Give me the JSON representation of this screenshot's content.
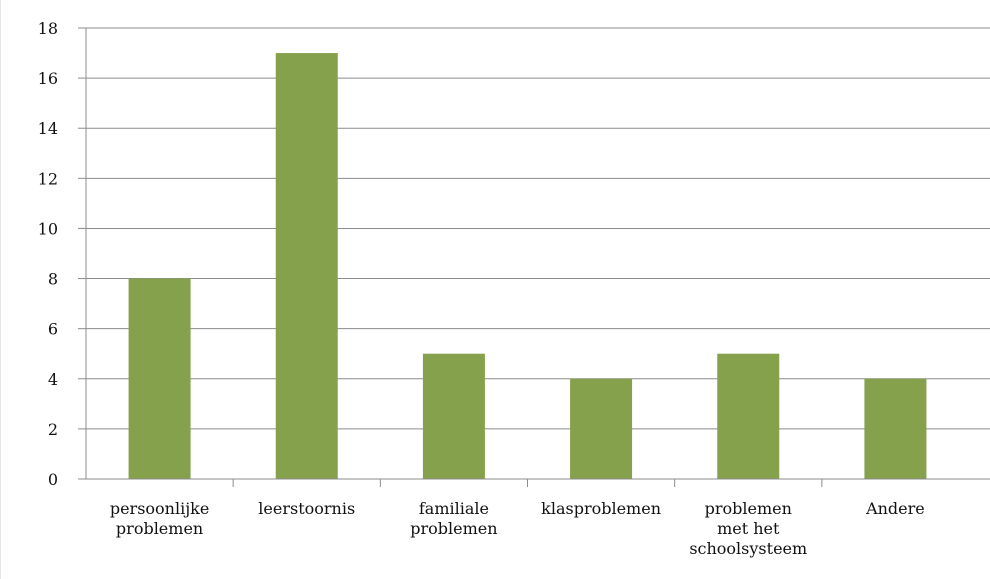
{
  "chart_data": {
    "type": "bar",
    "title": "",
    "xlabel": "",
    "ylabel": "",
    "ylim": [
      0,
      18
    ],
    "yticks": [
      0,
      2,
      4,
      6,
      8,
      10,
      12,
      14,
      16,
      18
    ],
    "grid": true,
    "legend": "none",
    "categories": [
      [
        "persoonlijke",
        "problemen"
      ],
      [
        "leerstoornis"
      ],
      [
        "familiale",
        "problemen"
      ],
      [
        "klasproblemen"
      ],
      [
        "problemen",
        "met het",
        "schoolsysteem"
      ],
      [
        "Andere"
      ]
    ],
    "values": [
      8,
      17,
      5,
      4,
      5,
      4
    ],
    "colors": {
      "bar": "#86a14c",
      "grid": "#8c8c8c",
      "axis": "#8c8c8c",
      "text": "#111111"
    }
  }
}
